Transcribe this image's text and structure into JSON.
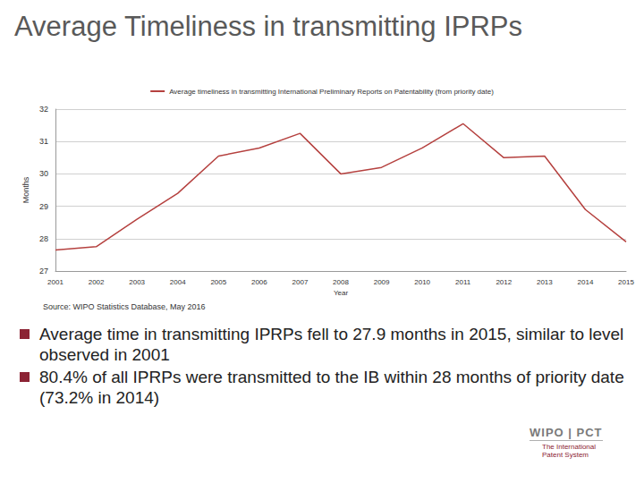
{
  "chart_data": {
    "type": "line",
    "x_label": "Year",
    "y_label": "Months",
    "categories": [
      "2001",
      "2002",
      "2003",
      "2004",
      "2005",
      "2006",
      "2007",
      "2008",
      "2009",
      "2010",
      "2011",
      "2012",
      "2013",
      "2014",
      "2015"
    ],
    "series": [
      {
        "name": "Average timeliness in transmitting International Preliminary Reports on Patentability (from priority date)",
        "color": "#b5413f",
        "values": [
          27.65,
          27.75,
          28.6,
          29.4,
          30.55,
          30.8,
          31.25,
          30.0,
          30.2,
          30.8,
          31.55,
          30.5,
          30.55,
          28.9,
          27.9
        ]
      }
    ],
    "ylim": [
      27,
      32
    ],
    "yticks": [
      27,
      28,
      29,
      30,
      31,
      32
    ],
    "grid": true,
    "legend": "top"
  },
  "slide": {
    "title": "Average Timeliness in transmitting IPRPs",
    "source": "Source: WIPO Statistics Database, May 2016",
    "bullets": [
      "Average time in transmitting IPRPs fell to 27.9 months in 2015, similar to level observed in 2001",
      "80.4% of all IPRPs were transmitted to the IB within 28 months of priority date (73.2% in 2014)"
    ],
    "logo": {
      "main": "WIPO | PCT",
      "sub": [
        "The International",
        "Patent System"
      ]
    }
  }
}
